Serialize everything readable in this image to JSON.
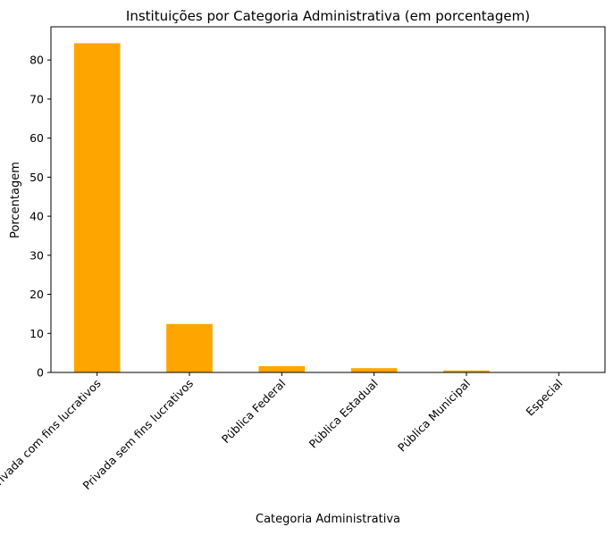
{
  "chart_data": {
    "type": "bar",
    "title": "Instituições por Categoria Administrativa (em porcentagem)",
    "xlabel": "Categoria Administrativa",
    "ylabel": "Porcentagem",
    "categories": [
      "Privada com fins lucrativos",
      "Privada sem fins lucrativos",
      "Pública Federal",
      "Pública Estadual",
      "Pública Municipal",
      "Especial"
    ],
    "values": [
      84.3,
      12.4,
      1.6,
      1.1,
      0.5,
      0.1
    ],
    "ylim": [
      0,
      88.5
    ],
    "yticks": [
      0,
      10,
      20,
      30,
      40,
      50,
      60,
      70,
      80
    ],
    "bar_color": "#FFA500",
    "grid": false,
    "legend": "none"
  }
}
